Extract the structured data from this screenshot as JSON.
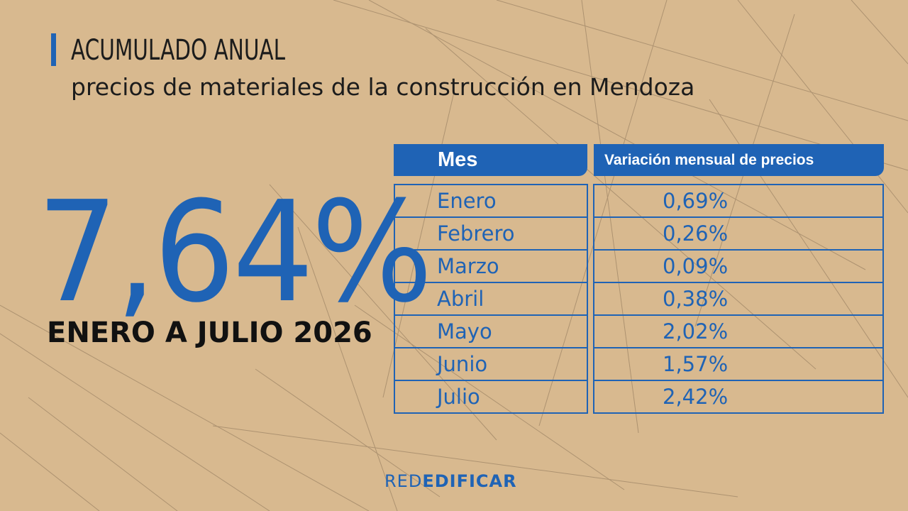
{
  "header": {
    "title": "ACUMULADO ANUAL",
    "subtitle": "precios de materiales de la construcción en Mendoza"
  },
  "summary": {
    "value": "7,64%",
    "period": "ENERO A JULIO 2026"
  },
  "table": {
    "columns": [
      "Mes",
      "Variación mensual de precios"
    ],
    "rows": [
      {
        "month": "Enero",
        "value": "0,69%"
      },
      {
        "month": "Febrero",
        "value": "0,26%"
      },
      {
        "month": "Marzo",
        "value": "0,09%"
      },
      {
        "month": "Abril",
        "value": "0,38%"
      },
      {
        "month": "Mayo",
        "value": "2,02%"
      },
      {
        "month": "Junio",
        "value": "1,57%"
      },
      {
        "month": "Julio",
        "value": "2,42%"
      }
    ]
  },
  "logo": {
    "part1": "RED",
    "part2": "EDIFICAR"
  },
  "colors": {
    "accent": "#1f63b5",
    "background": "#d8b98f",
    "text": "#1c1c1c"
  }
}
